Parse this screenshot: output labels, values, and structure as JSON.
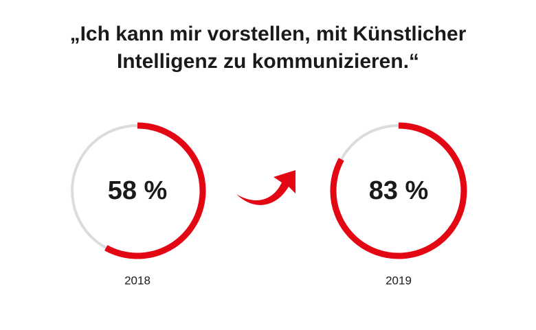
{
  "chart_data": {
    "type": "progress-ring",
    "title": "„Ich kann mir vorstellen, mit Künstlicher Intelligenz zu kommunizieren.“",
    "categories": [
      "2018",
      "2019"
    ],
    "values": [
      58,
      83
    ],
    "value_labels": [
      "58 %",
      "83 %"
    ],
    "ylim": [
      0,
      100
    ],
    "color": "#e30613",
    "track_color": "#dcdcdc"
  }
}
